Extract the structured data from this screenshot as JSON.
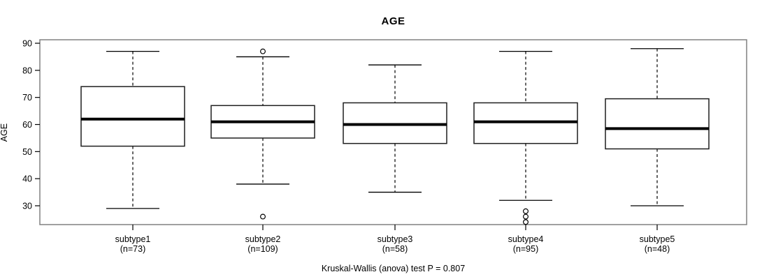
{
  "chart_data": {
    "type": "boxplot",
    "title": "AGE",
    "ylabel": "AGE",
    "xlabel": "",
    "test_label": "Kruskal-Wallis (anova) test P = 0.807",
    "y_ticks": [
      30,
      40,
      50,
      60,
      70,
      80,
      90
    ],
    "ylim": [
      23,
      91.3
    ],
    "grid": false,
    "legend": "none",
    "categories": [
      {
        "label": "subtype1",
        "sublabel": "(n=73)",
        "n": 73,
        "whisker_low": 29,
        "q1": 52,
        "median": 62,
        "q3": 74,
        "whisker_high": 87,
        "outliers": []
      },
      {
        "label": "subtype2",
        "sublabel": "(n=109)",
        "n": 109,
        "whisker_low": 38,
        "q1": 55,
        "median": 61,
        "q3": 67,
        "whisker_high": 85,
        "outliers": [
          87,
          26
        ]
      },
      {
        "label": "subtype3",
        "sublabel": "(n=58)",
        "n": 58,
        "whisker_low": 35,
        "q1": 53,
        "median": 60,
        "q3": 68,
        "whisker_high": 82,
        "outliers": []
      },
      {
        "label": "subtype4",
        "sublabel": "(n=95)",
        "n": 95,
        "whisker_low": 32,
        "q1": 53,
        "median": 61,
        "q3": 68,
        "whisker_high": 87,
        "outliers": [
          28,
          26,
          24
        ]
      },
      {
        "label": "subtype5",
        "sublabel": "(n=48)",
        "n": 48,
        "whisker_low": 30,
        "q1": 51,
        "median": 58.5,
        "q3": 69.5,
        "whisker_high": 88,
        "outliers": []
      }
    ]
  },
  "colors": {
    "background": "#ffffff",
    "frame": "#808080",
    "box_border": "#1f1f1f",
    "box_fill": "#ffffff",
    "median": "#000000",
    "whisker": "#000000",
    "text": "#000000"
  }
}
